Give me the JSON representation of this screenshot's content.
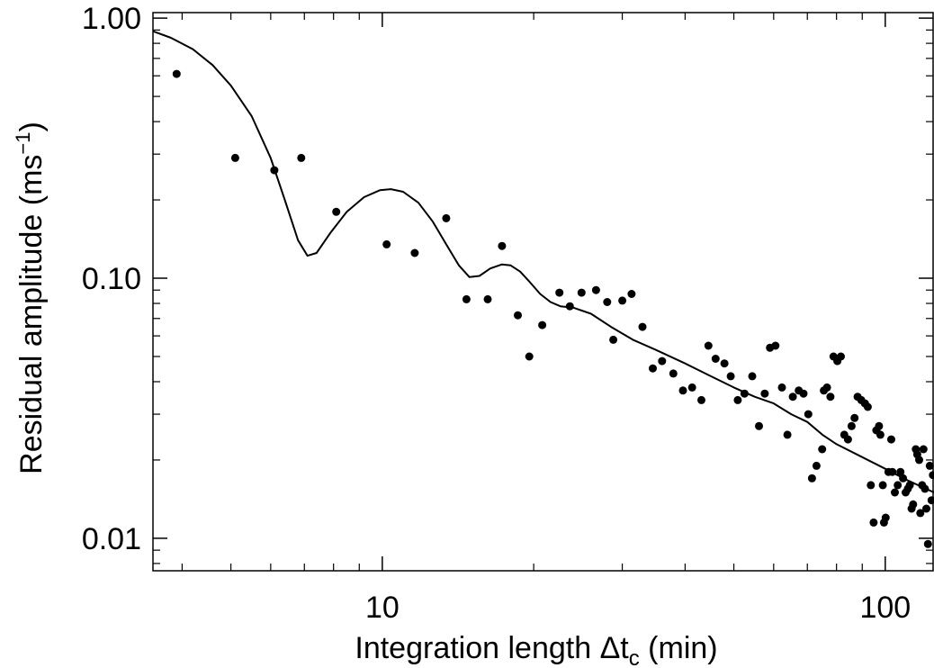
{
  "chart_data": {
    "type": "scatter",
    "title": "",
    "xlabel": "Integration length Δt",
    "xlabel_subscript": "c",
    "xlabel_unit": " (min)",
    "ylabel": "Residual amplitude (ms",
    "ylabel_superscript": "−1",
    "ylabel_close": ")",
    "xscale": "log",
    "yscale": "log",
    "xlim": [
      3.5,
      125
    ],
    "ylim": [
      0.0075,
      1.05
    ],
    "xticks": [
      10,
      100
    ],
    "xtick_labels": [
      "10",
      "100"
    ],
    "yticks": [
      0.01,
      0.1,
      1.0
    ],
    "ytick_labels": [
      "0.01",
      "0.10",
      "1.00"
    ],
    "grid": false,
    "series": [
      {
        "kind": "points",
        "points": [
          [
            3.9,
            0.61
          ],
          [
            5.1,
            0.29
          ],
          [
            6.1,
            0.26
          ],
          [
            6.9,
            0.29
          ],
          [
            8.1,
            0.18
          ],
          [
            10.2,
            0.135
          ],
          [
            11.6,
            0.125
          ],
          [
            13.4,
            0.17
          ],
          [
            14.7,
            0.083
          ],
          [
            16.2,
            0.083
          ],
          [
            17.3,
            0.133
          ],
          [
            18.6,
            0.072
          ],
          [
            19.6,
            0.05
          ],
          [
            20.8,
            0.066
          ],
          [
            22.5,
            0.088
          ],
          [
            23.6,
            0.078
          ],
          [
            24.9,
            0.088
          ],
          [
            26.6,
            0.09
          ],
          [
            28.0,
            0.081
          ],
          [
            28.8,
            0.058
          ],
          [
            30.0,
            0.082
          ],
          [
            31.3,
            0.087
          ],
          [
            32.9,
            0.065
          ],
          [
            34.5,
            0.045
          ],
          [
            36.0,
            0.048
          ],
          [
            37.9,
            0.043
          ],
          [
            39.6,
            0.037
          ],
          [
            41.3,
            0.038
          ],
          [
            43.1,
            0.034
          ],
          [
            44.5,
            0.055
          ],
          [
            46.0,
            0.049
          ],
          [
            47.9,
            0.047
          ],
          [
            49.3,
            0.042
          ],
          [
            50.9,
            0.034
          ],
          [
            52.5,
            0.036
          ],
          [
            54.4,
            0.042
          ],
          [
            56.1,
            0.027
          ],
          [
            57.6,
            0.036
          ],
          [
            59.0,
            0.054
          ],
          [
            60.5,
            0.055
          ],
          [
            62.3,
            0.038
          ],
          [
            63.9,
            0.025
          ],
          [
            65.5,
            0.035
          ],
          [
            67.3,
            0.037
          ],
          [
            68.8,
            0.036
          ],
          [
            70.3,
            0.03
          ],
          [
            71.5,
            0.017
          ],
          [
            73.0,
            0.019
          ],
          [
            74.9,
            0.022
          ],
          [
            75.5,
            0.037
          ],
          [
            76.6,
            0.038
          ],
          [
            77.8,
            0.035
          ],
          [
            78.9,
            0.05
          ],
          [
            80.3,
            0.048
          ],
          [
            81.6,
            0.05
          ],
          [
            82.9,
            0.025
          ],
          [
            84.3,
            0.024
          ],
          [
            85.7,
            0.027
          ],
          [
            86.9,
            0.029
          ],
          [
            88.1,
            0.035
          ],
          [
            89.6,
            0.034
          ],
          [
            91.1,
            0.033
          ],
          [
            92.3,
            0.032
          ],
          [
            93.6,
            0.016
          ],
          [
            94.8,
            0.0115
          ],
          [
            96.0,
            0.026
          ],
          [
            97.2,
            0.027
          ],
          [
            97.8,
            0.025
          ],
          [
            98.9,
            0.016
          ],
          [
            99.4,
            0.0115
          ],
          [
            100.2,
            0.012
          ],
          [
            101.5,
            0.018
          ],
          [
            102.8,
            0.024
          ],
          [
            103.3,
            0.018
          ],
          [
            104.5,
            0.015
          ],
          [
            105.9,
            0.016
          ],
          [
            107.2,
            0.018
          ],
          [
            108.5,
            0.017
          ],
          [
            109.8,
            0.015
          ],
          [
            110.9,
            0.0155
          ],
          [
            111.9,
            0.016
          ],
          [
            112.8,
            0.013
          ],
          [
            113.6,
            0.0135
          ],
          [
            115.0,
            0.022
          ],
          [
            115.8,
            0.021
          ],
          [
            116.8,
            0.02
          ],
          [
            117.4,
            0.0125
          ],
          [
            118.4,
            0.016
          ],
          [
            119.1,
            0.022
          ],
          [
            119.9,
            0.0155
          ],
          [
            120.7,
            0.013
          ],
          [
            121.6,
            0.0095
          ],
          [
            122.6,
            0.019
          ],
          [
            123.6,
            0.014
          ],
          [
            124.4,
            0.0175
          ]
        ]
      },
      {
        "kind": "curve",
        "points": [
          [
            3.5,
            0.89
          ],
          [
            3.8,
            0.84
          ],
          [
            4.2,
            0.76
          ],
          [
            4.6,
            0.66
          ],
          [
            5.0,
            0.55
          ],
          [
            5.5,
            0.42
          ],
          [
            6.0,
            0.29
          ],
          [
            6.4,
            0.2
          ],
          [
            6.8,
            0.14
          ],
          [
            7.1,
            0.122
          ],
          [
            7.4,
            0.125
          ],
          [
            7.9,
            0.15
          ],
          [
            8.5,
            0.18
          ],
          [
            9.2,
            0.205
          ],
          [
            9.9,
            0.218
          ],
          [
            10.4,
            0.22
          ],
          [
            11.0,
            0.215
          ],
          [
            11.8,
            0.195
          ],
          [
            12.6,
            0.165
          ],
          [
            13.4,
            0.135
          ],
          [
            14.2,
            0.112
          ],
          [
            14.9,
            0.101
          ],
          [
            15.6,
            0.102
          ],
          [
            16.4,
            0.109
          ],
          [
            17.3,
            0.113
          ],
          [
            18.0,
            0.112
          ],
          [
            18.8,
            0.106
          ],
          [
            19.7,
            0.096
          ],
          [
            20.6,
            0.087
          ],
          [
            21.6,
            0.081
          ],
          [
            22.6,
            0.078
          ],
          [
            24.0,
            0.077
          ],
          [
            26.0,
            0.073
          ],
          [
            28.5,
            0.065
          ],
          [
            31.5,
            0.058
          ],
          [
            35.0,
            0.053
          ],
          [
            40.0,
            0.047
          ],
          [
            45.0,
            0.042
          ],
          [
            50.0,
            0.038
          ],
          [
            55.0,
            0.035
          ],
          [
            60.0,
            0.033
          ],
          [
            65.0,
            0.03
          ],
          [
            70.0,
            0.028
          ],
          [
            75.0,
            0.025
          ],
          [
            80.0,
            0.023
          ],
          [
            90.0,
            0.0205
          ],
          [
            100.0,
            0.0185
          ],
          [
            110.0,
            0.0168
          ],
          [
            125.0,
            0.015
          ]
        ]
      }
    ]
  }
}
